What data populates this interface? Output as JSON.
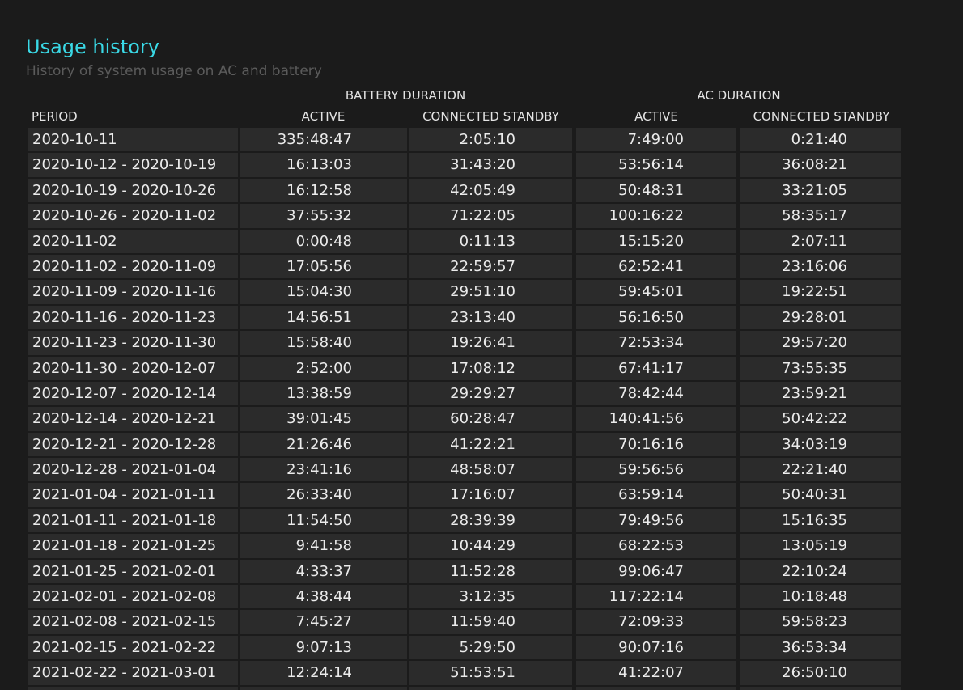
{
  "header": {
    "title": "Usage history",
    "subtitle": "History of system usage on AC and battery"
  },
  "table": {
    "group_headers": {
      "battery": "BATTERY DURATION",
      "ac": "AC DURATION"
    },
    "columns": {
      "period": "PERIOD",
      "battery_active": "ACTIVE",
      "battery_standby": "CONNECTED STANDBY",
      "ac_active": "ACTIVE",
      "ac_standby": "CONNECTED STANDBY"
    },
    "rows": [
      [
        "2020-10-11",
        "335:48:47",
        "2:05:10",
        "7:49:00",
        "0:21:40"
      ],
      [
        "2020-10-12 - 2020-10-19",
        "16:13:03",
        "31:43:20",
        "53:56:14",
        "36:08:21"
      ],
      [
        "2020-10-19 - 2020-10-26",
        "16:12:58",
        "42:05:49",
        "50:48:31",
        "33:21:05"
      ],
      [
        "2020-10-26 - 2020-11-02",
        "37:55:32",
        "71:22:05",
        "100:16:22",
        "58:35:17"
      ],
      [
        "2020-11-02",
        "0:00:48",
        "0:11:13",
        "15:15:20",
        "2:07:11"
      ],
      [
        "2020-11-02 - 2020-11-09",
        "17:05:56",
        "22:59:57",
        "62:52:41",
        "23:16:06"
      ],
      [
        "2020-11-09 - 2020-11-16",
        "15:04:30",
        "29:51:10",
        "59:45:01",
        "19:22:51"
      ],
      [
        "2020-11-16 - 2020-11-23",
        "14:56:51",
        "23:13:40",
        "56:16:50",
        "29:28:01"
      ],
      [
        "2020-11-23 - 2020-11-30",
        "15:58:40",
        "19:26:41",
        "72:53:34",
        "29:57:20"
      ],
      [
        "2020-11-30 - 2020-12-07",
        "2:52:00",
        "17:08:12",
        "67:41:17",
        "73:55:35"
      ],
      [
        "2020-12-07 - 2020-12-14",
        "13:38:59",
        "29:29:27",
        "78:42:44",
        "23:59:21"
      ],
      [
        "2020-12-14 - 2020-12-21",
        "39:01:45",
        "60:28:47",
        "140:41:56",
        "50:42:22"
      ],
      [
        "2020-12-21 - 2020-12-28",
        "21:26:46",
        "41:22:21",
        "70:16:16",
        "34:03:19"
      ],
      [
        "2020-12-28 - 2021-01-04",
        "23:41:16",
        "48:58:07",
        "59:56:56",
        "22:21:40"
      ],
      [
        "2021-01-04 - 2021-01-11",
        "26:33:40",
        "17:16:07",
        "63:59:14",
        "50:40:31"
      ],
      [
        "2021-01-11 - 2021-01-18",
        "11:54:50",
        "28:39:39",
        "79:49:56",
        "15:16:35"
      ],
      [
        "2021-01-18 - 2021-01-25",
        "9:41:58",
        "10:44:29",
        "68:22:53",
        "13:05:19"
      ],
      [
        "2021-01-25 - 2021-02-01",
        "4:33:37",
        "11:52:28",
        "99:06:47",
        "22:10:24"
      ],
      [
        "2021-02-01 - 2021-02-08",
        "4:38:44",
        "3:12:35",
        "117:22:14",
        "10:18:48"
      ],
      [
        "2021-02-08 - 2021-02-15",
        "7:45:27",
        "11:59:40",
        "72:09:33",
        "59:58:23"
      ],
      [
        "2021-02-15 - 2021-02-22",
        "9:07:13",
        "5:29:50",
        "90:07:16",
        "36:53:34"
      ],
      [
        "2021-02-22 - 2021-03-01",
        "12:24:14",
        "51:53:51",
        "41:22:07",
        "26:50:10"
      ],
      [
        "",
        "",
        "",
        "",
        ""
      ]
    ]
  },
  "colors": {
    "background": "#1b1b1b",
    "cell_background": "#2b2b2b",
    "title_accent": "#3ad9e6",
    "subtitle": "#5b5b5b",
    "text": "#ebebeb"
  }
}
